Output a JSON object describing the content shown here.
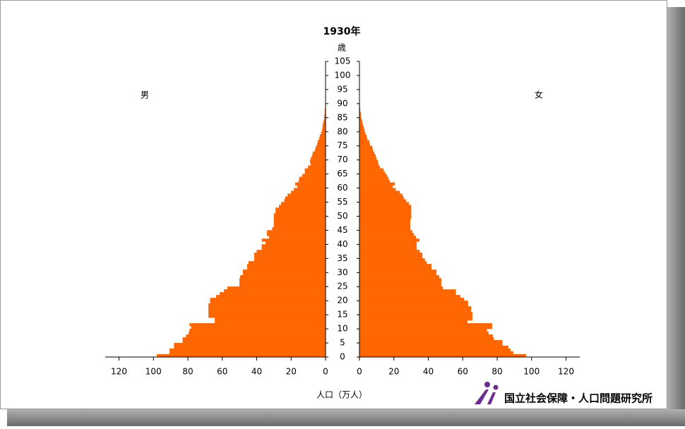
{
  "chart_data": {
    "type": "population_pyramid",
    "title": "1930年",
    "y_label": "歳",
    "x_label": "人口（万人）",
    "source": "国立社会保障・人口問題研究所",
    "ylim": [
      0,
      105
    ],
    "yticks": [
      0,
      5,
      10,
      15,
      20,
      25,
      30,
      35,
      40,
      45,
      50,
      55,
      60,
      65,
      70,
      75,
      80,
      85,
      90,
      95,
      100,
      105
    ],
    "xlim": [
      0,
      128
    ],
    "xticks": [
      0,
      20,
      40,
      60,
      80,
      100,
      120
    ],
    "series": [
      {
        "name": "男",
        "side": "left",
        "color": "#ff6600",
        "values": [
          98,
          90.6,
          90.6,
          88,
          88,
          83,
          83,
          81,
          79.5,
          79,
          78,
          79,
          64.3,
          64.3,
          68,
          68,
          68,
          68,
          68,
          67,
          67,
          63.5,
          61.5,
          59,
          57,
          50,
          50,
          50,
          49.6,
          48,
          48,
          45.5,
          45.5,
          44.7,
          41.4,
          41.4,
          41.4,
          40,
          37,
          37,
          34.8,
          37,
          32.8,
          34,
          34,
          31,
          30,
          30,
          30,
          30,
          30,
          29,
          29,
          27,
          25.8,
          24,
          23.4,
          22,
          20,
          18.4,
          16.4,
          17.6,
          15.6,
          15.2,
          13.5,
          12,
          12,
          10.2,
          8.6,
          9,
          8.6,
          7.8,
          7.4,
          6.1,
          5.7,
          4.9,
          4.5,
          3.7,
          3.3,
          2.5,
          2,
          1.8,
          1.6,
          1.2,
          0.8,
          0.8,
          0.4,
          0.4,
          0.2,
          0.1,
          0
        ]
      },
      {
        "name": "女",
        "side": "right",
        "color": "#ff6600",
        "values": [
          96.7,
          89.3,
          87.7,
          86.5,
          83,
          83,
          78,
          77.5,
          75,
          74,
          77,
          77,
          62.7,
          65.6,
          65.6,
          65.6,
          64.8,
          64.8,
          63,
          63,
          60.7,
          58.6,
          56,
          56,
          48.4,
          47.5,
          47.5,
          47.5,
          46.3,
          44.7,
          44.7,
          41.8,
          41.8,
          39,
          38,
          36.5,
          36.5,
          35,
          33.2,
          33.2,
          33.2,
          34.8,
          32.8,
          31.6,
          30.7,
          29.5,
          29.5,
          29.5,
          29.5,
          30,
          30,
          30,
          30,
          30,
          28.7,
          27,
          25.8,
          25,
          23.4,
          21,
          19.3,
          20.5,
          17.6,
          16.8,
          16,
          14.8,
          13.9,
          11.9,
          11,
          10.7,
          9.8,
          9.4,
          8.6,
          7.8,
          7.4,
          6.1,
          5.7,
          4.5,
          4.1,
          3.3,
          2.9,
          2.5,
          2,
          1.6,
          1.2,
          0.8,
          0.8,
          0.4,
          0.3,
          0.2,
          0.1
        ]
      }
    ]
  }
}
